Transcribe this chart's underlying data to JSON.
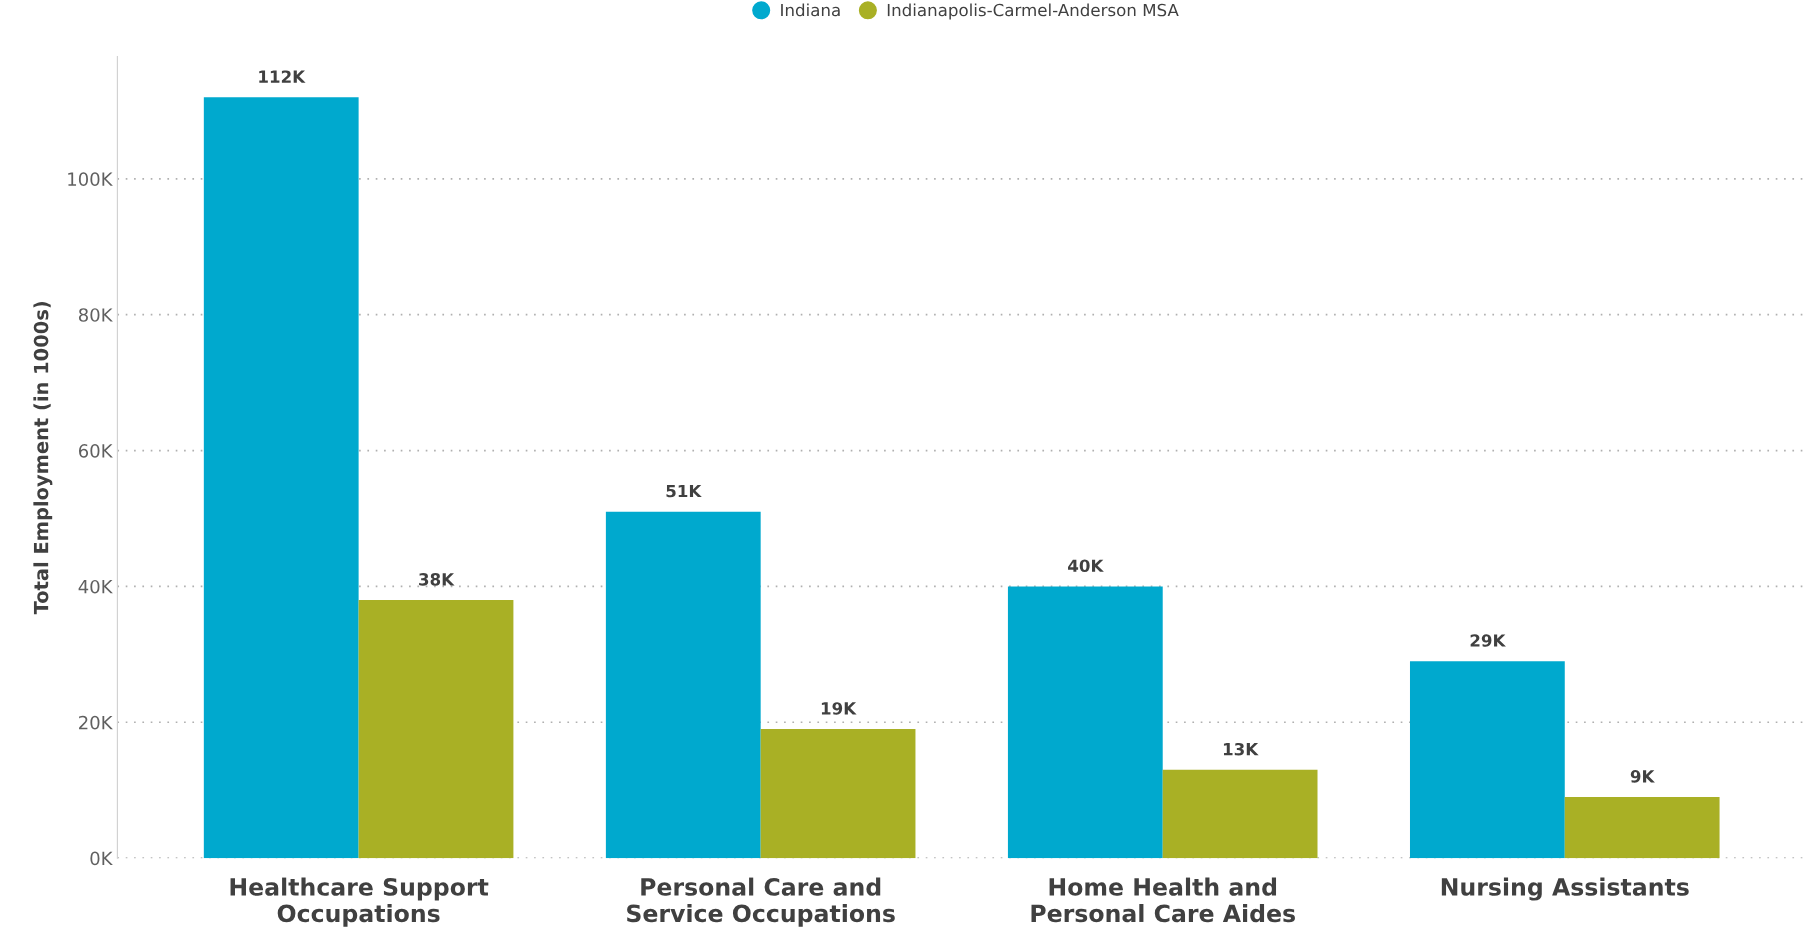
{
  "chart_data": {
    "type": "bar",
    "ylabel": "Total Employment (in 1000s)",
    "categories": [
      "Healthcare Support Occupations",
      "Personal Care and Service Occupations",
      "Home Health and Personal Care Aides",
      "Nursing Assistants"
    ],
    "series": [
      {
        "name": "Indiana",
        "color": "#00a9ce",
        "values": [
          112000,
          51000,
          40000,
          29000
        ],
        "value_labels": [
          "112K",
          "51K",
          "40K",
          "29K"
        ]
      },
      {
        "name": "Indianapolis-Carmel-Anderson MSA",
        "color": "#a9b025",
        "values": [
          38000,
          19000,
          13000,
          9000
        ],
        "value_labels": [
          "38K",
          "19K",
          "13K",
          "9K"
        ]
      }
    ],
    "ylim": [
      0,
      118000
    ],
    "yticks": [
      {
        "value": 0,
        "label": "0K"
      },
      {
        "value": 20000,
        "label": "20K"
      },
      {
        "value": 40000,
        "label": "40K"
      },
      {
        "value": 60000,
        "label": "60K"
      },
      {
        "value": 80000,
        "label": "80K"
      },
      {
        "value": 100000,
        "label": "100K"
      }
    ],
    "grid": "y",
    "legend": "top",
    "marker": "circle"
  }
}
